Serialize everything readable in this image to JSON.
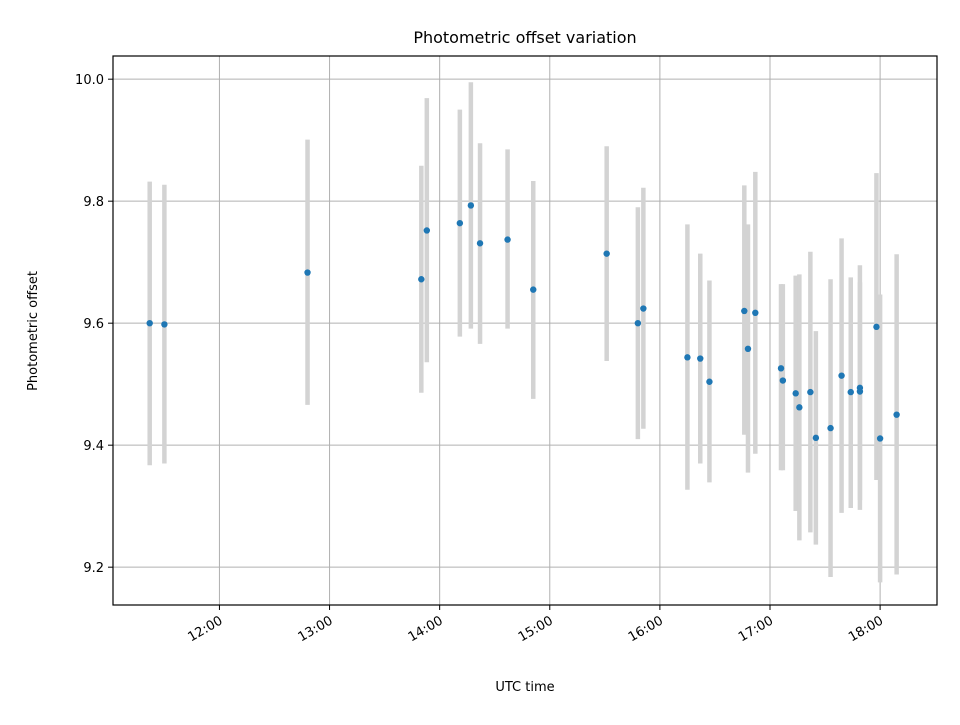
{
  "chart_data": {
    "type": "scatter",
    "title": "Photometric offset variation",
    "xlabel": "UTC time",
    "ylabel": "Photometric offset",
    "x_unit": "UTC time (HH:MM)",
    "xlim": [
      "11:02",
      "18:31"
    ],
    "ylim": [
      9.138,
      10.038
    ],
    "xticks": [
      "12:00",
      "13:00",
      "14:00",
      "15:00",
      "16:00",
      "17:00",
      "18:00"
    ],
    "yticks": [
      "9.2",
      "9.4",
      "9.6",
      "9.8",
      "10.0"
    ],
    "grid": true,
    "colors": {
      "point": "#1f77b4",
      "errorbar": "#d3d3d3",
      "grid": "#b0b0b0"
    },
    "series": [
      {
        "points": [
          {
            "x": "11:22",
            "y": 9.6,
            "yerr": [
              9.367,
              9.832
            ]
          },
          {
            "x": "11:30",
            "y": 9.598,
            "yerr": [
              9.37,
              9.827
            ]
          },
          {
            "x": "12:48",
            "y": 9.683,
            "yerr": [
              9.466,
              9.901
            ]
          },
          {
            "x": "13:50",
            "y": 9.672,
            "yerr": [
              9.486,
              9.858
            ]
          },
          {
            "x": "13:53",
            "y": 9.752,
            "yerr": [
              9.536,
              9.969
            ]
          },
          {
            "x": "14:11",
            "y": 9.764,
            "yerr": [
              9.578,
              9.95
            ]
          },
          {
            "x": "14:17",
            "y": 9.793,
            "yerr": [
              9.591,
              9.995
            ]
          },
          {
            "x": "14:22",
            "y": 9.731,
            "yerr": [
              9.566,
              9.895
            ]
          },
          {
            "x": "14:37",
            "y": 9.737,
            "yerr": [
              9.591,
              9.885
            ]
          },
          {
            "x": "14:51",
            "y": 9.655,
            "yerr": [
              9.476,
              9.833
            ]
          },
          {
            "x": "15:31",
            "y": 9.714,
            "yerr": [
              9.538,
              9.89
            ]
          },
          {
            "x": "15:48",
            "y": 9.6,
            "yerr": [
              9.41,
              9.79
            ]
          },
          {
            "x": "15:51",
            "y": 9.624,
            "yerr": [
              9.427,
              9.822
            ]
          },
          {
            "x": "16:15",
            "y": 9.544,
            "yerr": [
              9.327,
              9.762
            ]
          },
          {
            "x": "16:22",
            "y": 9.542,
            "yerr": [
              9.37,
              9.714
            ]
          },
          {
            "x": "16:27",
            "y": 9.504,
            "yerr": [
              9.339,
              9.67
            ]
          },
          {
            "x": "16:46",
            "y": 9.62,
            "yerr": [
              9.417,
              9.826
            ]
          },
          {
            "x": "16:48",
            "y": 9.558,
            "yerr": [
              9.355,
              9.762
            ]
          },
          {
            "x": "16:52",
            "y": 9.617,
            "yerr": [
              9.386,
              9.848
            ]
          },
          {
            "x": "17:06",
            "y": 9.526,
            "yerr": [
              9.359,
              9.664
            ]
          },
          {
            "x": "17:07",
            "y": 9.506,
            "yerr": [
              9.359,
              9.664
            ]
          },
          {
            "x": "17:14",
            "y": 9.485,
            "yerr": [
              9.292,
              9.678
            ]
          },
          {
            "x": "17:16",
            "y": 9.462,
            "yerr": [
              9.244,
              9.68
            ]
          },
          {
            "x": "17:22",
            "y": 9.487,
            "yerr": [
              9.257,
              9.717
            ]
          },
          {
            "x": "17:25",
            "y": 9.412,
            "yerr": [
              9.237,
              9.587
            ]
          },
          {
            "x": "17:33",
            "y": 9.428,
            "yerr": [
              9.184,
              9.672
            ]
          },
          {
            "x": "17:39",
            "y": 9.514,
            "yerr": [
              9.289,
              9.739
            ]
          },
          {
            "x": "17:44",
            "y": 9.487,
            "yerr": [
              9.297,
              9.675
            ]
          },
          {
            "x": "17:49",
            "y": 9.494,
            "yerr": [
              9.294,
              9.695
            ]
          },
          {
            "x": "17:49",
            "y": 9.488,
            "yerr": [
              9.31,
              9.667
            ]
          },
          {
            "x": "17:58",
            "y": 9.594,
            "yerr": [
              9.343,
              9.846
            ]
          },
          {
            "x": "18:00",
            "y": 9.411,
            "yerr": [
              9.175,
              9.647
            ]
          },
          {
            "x": "18:09",
            "y": 9.45,
            "yerr": [
              9.188,
              9.713
            ]
          }
        ]
      }
    ]
  }
}
